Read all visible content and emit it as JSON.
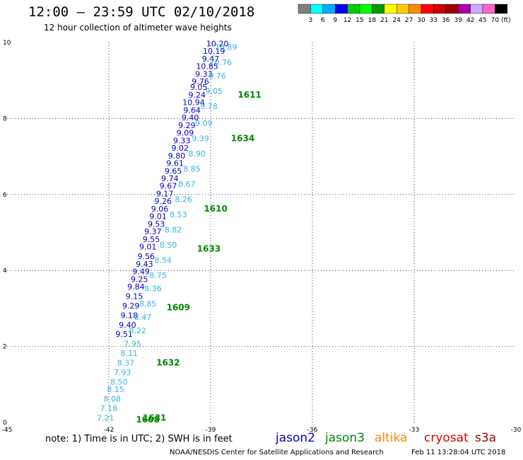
{
  "title": "12:00 – 23:59 UTC 02/10/2018",
  "subtitle": "12 hour collection of altimeter wave heights",
  "note": "note:  1) Time is in UTC;  2) SWH is in feet",
  "credit": "NOAA/NESDIS Center for Satellite Applications and Research",
  "timestamp": "Feb 11 13:28:04 UTC 2018",
  "missions": [
    {
      "name": "jason2",
      "color": "#0000cc"
    },
    {
      "name": "jason3",
      "color": "#008800"
    },
    {
      "name": "altika",
      "color": "#ff8800"
    },
    {
      "name": "cryosat",
      "color": "#dd0000"
    },
    {
      "name": "s3a",
      "color": "#990000"
    }
  ],
  "colors": {
    "jason2_points": "#0000cc",
    "jason3_points": "#33b5e5",
    "time_labels": "#008800"
  },
  "color_scale": {
    "unit": "(ft)",
    "labels": [
      "3",
      "6",
      "9",
      "12",
      "15",
      "18",
      "21",
      "24",
      "27",
      "30",
      "33",
      "36",
      "39",
      "42",
      "45",
      "70"
    ],
    "colors": [
      "#7f7f7f",
      "#00ffff",
      "#00aaff",
      "#0000ff",
      "#00cc00",
      "#00ff00",
      "#009900",
      "#ffff00",
      "#ffcc00",
      "#ff8800",
      "#ff0000",
      "#cc0000",
      "#990000",
      "#aa00aa",
      "#ccaaff",
      "#ff66cc",
      "#000000"
    ]
  },
  "chart_data": {
    "type": "scatter",
    "xlim": [
      -45,
      -30
    ],
    "ylim": [
      0,
      10
    ],
    "xticks": [
      -45,
      -42,
      -39,
      -36,
      -33,
      -30
    ],
    "xtick_labels": [
      "-45",
      "-42",
      "-39",
      "-36",
      "-33",
      "-30"
    ],
    "yticks": [
      0,
      2,
      4,
      6,
      8,
      10
    ],
    "ytick_labels": [
      "0",
      "2",
      "4",
      "6",
      "8",
      "10"
    ],
    "grid": true,
    "series": [
      {
        "name": "jason2",
        "points": [
          {
            "x": -38.8,
            "y": 9.9,
            "label": "10.20"
          },
          {
            "x": -38.9,
            "y": 9.7,
            "label": "10.19"
          },
          {
            "x": -39.0,
            "y": 9.5,
            "label": "9.47"
          },
          {
            "x": -39.1,
            "y": 9.3,
            "label": "10.85"
          },
          {
            "x": -39.2,
            "y": 9.1,
            "label": "9.33"
          },
          {
            "x": -39.3,
            "y": 8.9,
            "label": "9.76"
          },
          {
            "x": -39.35,
            "y": 8.75,
            "label": "9.05"
          },
          {
            "x": -39.4,
            "y": 8.55,
            "label": "9.24"
          },
          {
            "x": -39.5,
            "y": 8.35,
            "label": "10.94"
          },
          {
            "x": -39.55,
            "y": 8.15,
            "label": "9.64"
          },
          {
            "x": -39.6,
            "y": 7.95,
            "label": "9.40"
          },
          {
            "x": -39.7,
            "y": 7.75,
            "label": "9.29"
          },
          {
            "x": -39.75,
            "y": 7.55,
            "label": "9.09"
          },
          {
            "x": -39.85,
            "y": 7.35,
            "label": "9.33"
          },
          {
            "x": -39.9,
            "y": 7.15,
            "label": "9.02"
          },
          {
            "x": -40.0,
            "y": 6.95,
            "label": "9.80"
          },
          {
            "x": -40.05,
            "y": 6.75,
            "label": "9.61"
          },
          {
            "x": -40.1,
            "y": 6.55,
            "label": "9.65"
          },
          {
            "x": -40.2,
            "y": 6.35,
            "label": "9.74"
          },
          {
            "x": -40.25,
            "y": 6.15,
            "label": "9.67"
          },
          {
            "x": -40.35,
            "y": 5.95,
            "label": "9.17"
          },
          {
            "x": -40.4,
            "y": 5.75,
            "label": "9.26"
          },
          {
            "x": -40.5,
            "y": 5.55,
            "label": "9.06"
          },
          {
            "x": -40.55,
            "y": 5.35,
            "label": "9.01"
          },
          {
            "x": -40.6,
            "y": 5.15,
            "label": "9.53"
          },
          {
            "x": -40.7,
            "y": 4.95,
            "label": "9.37"
          },
          {
            "x": -40.75,
            "y": 4.75,
            "label": "9.55"
          },
          {
            "x": -40.85,
            "y": 4.55,
            "label": "9.01"
          },
          {
            "x": -40.9,
            "y": 4.3,
            "label": "9.56"
          },
          {
            "x": -40.95,
            "y": 4.1,
            "label": "9.43"
          },
          {
            "x": -41.05,
            "y": 3.9,
            "label": "9.49"
          },
          {
            "x": -41.1,
            "y": 3.7,
            "label": "9.25"
          },
          {
            "x": -41.2,
            "y": 3.5,
            "label": "9.84"
          },
          {
            "x": -41.25,
            "y": 3.25,
            "label": "9.15"
          },
          {
            "x": -41.35,
            "y": 3.0,
            "label": "9.29"
          },
          {
            "x": -41.4,
            "y": 2.75,
            "label": "9.18"
          },
          {
            "x": -41.45,
            "y": 2.5,
            "label": "9.40"
          },
          {
            "x": -41.55,
            "y": 2.25,
            "label": "9.51"
          }
        ]
      },
      {
        "name": "jason3",
        "points": [
          {
            "x": -38.55,
            "y": 9.8,
            "label": "10.89"
          },
          {
            "x": -38.7,
            "y": 9.4,
            "label": "10.76"
          },
          {
            "x": -38.8,
            "y": 9.05,
            "label": "9.76"
          },
          {
            "x": -38.9,
            "y": 8.65,
            "label": "9.05"
          },
          {
            "x": -39.05,
            "y": 8.25,
            "label": "9.78"
          },
          {
            "x": -39.2,
            "y": 7.8,
            "label": "9.09"
          },
          {
            "x": -39.3,
            "y": 7.4,
            "label": "9.39"
          },
          {
            "x": -39.4,
            "y": 7.0,
            "label": "8.90"
          },
          {
            "x": -39.55,
            "y": 6.6,
            "label": "8.85"
          },
          {
            "x": -39.7,
            "y": 6.2,
            "label": "8.67"
          },
          {
            "x": -39.8,
            "y": 5.8,
            "label": "8.26"
          },
          {
            "x": -39.95,
            "y": 5.4,
            "label": "8.53"
          },
          {
            "x": -40.1,
            "y": 5.0,
            "label": "8.82"
          },
          {
            "x": -40.25,
            "y": 4.6,
            "label": "8.50"
          },
          {
            "x": -40.4,
            "y": 4.2,
            "label": "8.54"
          },
          {
            "x": -40.55,
            "y": 3.8,
            "label": "8.75"
          },
          {
            "x": -40.7,
            "y": 3.45,
            "label": "8.36"
          },
          {
            "x": -40.85,
            "y": 3.05,
            "label": "8.85"
          },
          {
            "x": -41.0,
            "y": 2.7,
            "label": "8.47"
          },
          {
            "x": -41.15,
            "y": 2.35,
            "label": "8.22"
          },
          {
            "x": -41.3,
            "y": 2.0,
            "label": "7.95"
          },
          {
            "x": -41.4,
            "y": 1.75,
            "label": "8.11"
          },
          {
            "x": -41.5,
            "y": 1.5,
            "label": "8.37"
          },
          {
            "x": -41.6,
            "y": 1.25,
            "label": "7.93"
          },
          {
            "x": -41.7,
            "y": 1.0,
            "label": "8.50"
          },
          {
            "x": -41.8,
            "y": 0.8,
            "label": "8.15"
          },
          {
            "x": -41.9,
            "y": 0.55,
            "label": "8.08"
          },
          {
            "x": -42.0,
            "y": 0.3,
            "label": "7.18"
          },
          {
            "x": -42.1,
            "y": 0.05,
            "label": "7.21"
          }
        ]
      }
    ],
    "time_labels": [
      {
        "x": -38.2,
        "y": 8.55,
        "label": "1611"
      },
      {
        "x": -38.4,
        "y": 7.4,
        "label": "1634"
      },
      {
        "x": -39.2,
        "y": 5.55,
        "label": "1610"
      },
      {
        "x": -39.4,
        "y": 4.5,
        "label": "1633"
      },
      {
        "x": -40.3,
        "y": 2.95,
        "label": "1609"
      },
      {
        "x": -40.6,
        "y": 1.5,
        "label": "1632"
      },
      {
        "x": -41.2,
        "y": 0.0,
        "label": "1608"
      },
      {
        "x": -41.0,
        "y": 0.05,
        "label": "1631"
      }
    ]
  }
}
